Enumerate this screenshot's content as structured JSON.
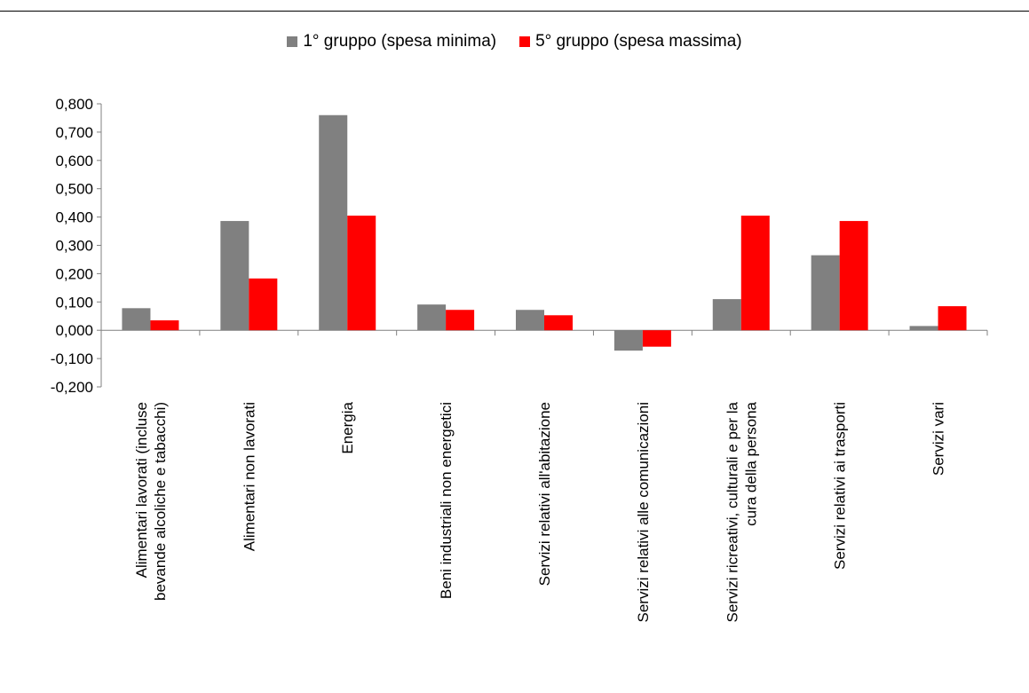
{
  "chart_data": {
    "type": "bar",
    "categories": [
      [
        "Alimentari lavorati (incluse",
        "bevande alcoliche e tabacchi)"
      ],
      [
        "Alimentari non lavorati"
      ],
      [
        "Energia"
      ],
      [
        "Beni industriali non energetici"
      ],
      [
        "Servizi relativi all'abitazione"
      ],
      [
        "Servizi relativi alle comunicazioni"
      ],
      [
        "Servizi ricreativi, culturali e per la",
        "cura della persona"
      ],
      [
        "Servizi relativi ai trasporti"
      ],
      [
        "Servizi vari"
      ]
    ],
    "series": [
      {
        "name": "1° gruppo (spesa minima)",
        "color": "#808080",
        "values": [
          0.078,
          0.386,
          0.76,
          0.091,
          0.072,
          -0.072,
          0.11,
          0.265,
          0.015
        ]
      },
      {
        "name": "5° gruppo (spesa massima)",
        "color": "#ff0000",
        "values": [
          0.035,
          0.183,
          0.405,
          0.072,
          0.053,
          -0.058,
          0.405,
          0.386,
          0.085
        ]
      }
    ],
    "ylim": [
      -0.2,
      0.8
    ],
    "ytick_step": 0.1,
    "ytick_labels": [
      "-0,200",
      "-0,100",
      "0,000",
      "0,100",
      "0,200",
      "0,300",
      "0,400",
      "0,500",
      "0,600",
      "0,700",
      "0,800"
    ],
    "legend_position": "top-center",
    "grid": false
  }
}
